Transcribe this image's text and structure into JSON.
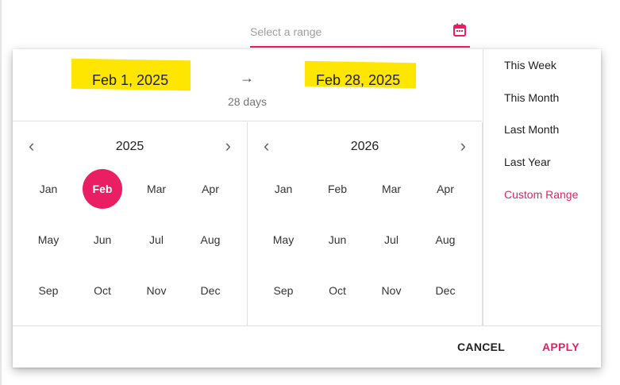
{
  "input": {
    "placeholder": "Select a range",
    "icon": "calendar-icon"
  },
  "header": {
    "start": "Feb 1, 2025",
    "end": "Feb 28, 2025",
    "arrow": "→",
    "duration": "28 days",
    "highlight_color": "#ffe600"
  },
  "calendars": [
    {
      "year": "2025",
      "months": [
        "Jan",
        "Feb",
        "Mar",
        "Apr",
        "May",
        "Jun",
        "Jul",
        "Aug",
        "Sep",
        "Oct",
        "Nov",
        "Dec"
      ],
      "selected": "Feb"
    },
    {
      "year": "2026",
      "months": [
        "Jan",
        "Feb",
        "Mar",
        "Apr",
        "May",
        "Jun",
        "Jul",
        "Aug",
        "Sep",
        "Oct",
        "Nov",
        "Dec"
      ],
      "selected": null
    }
  ],
  "presets": [
    "This Week",
    "This Month",
    "Last Month",
    "Last Year",
    "Custom Range"
  ],
  "active_preset": "Custom Range",
  "footer": {
    "cancel": "CANCEL",
    "apply": "APPLY"
  },
  "colors": {
    "accent": "#e91e63"
  }
}
